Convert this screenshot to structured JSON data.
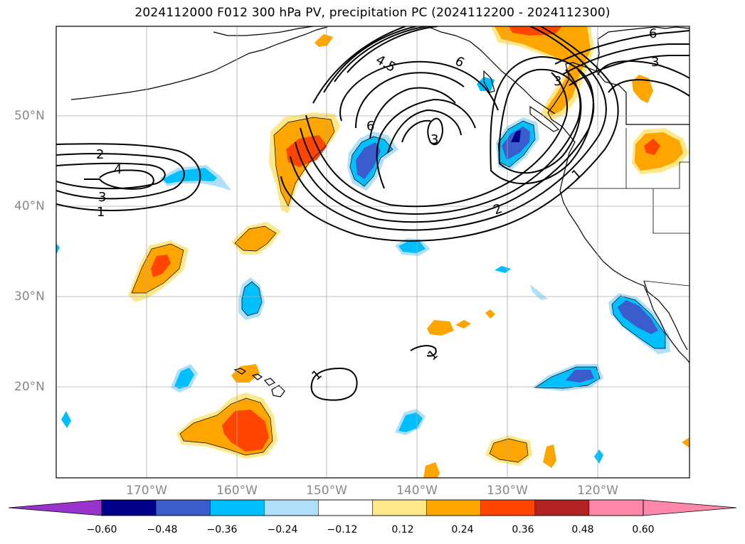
{
  "title": "2024112000 F012 300 hPa PV, precipitation PC (2024112200 - 2024112300)",
  "lat_axis": {
    "ticks": [
      {
        "value": 50,
        "label": "50°N"
      },
      {
        "value": 40,
        "label": "40°N"
      },
      {
        "value": 30,
        "label": "30°N"
      },
      {
        "value": 20,
        "label": "20°N"
      }
    ]
  },
  "lon_axis": {
    "ticks": [
      {
        "value": -170,
        "label": "170°W"
      },
      {
        "value": -160,
        "label": "160°W"
      },
      {
        "value": -150,
        "label": "150°W"
      },
      {
        "value": -140,
        "label": "140°W"
      },
      {
        "value": -130,
        "label": "130°W"
      },
      {
        "value": -120,
        "label": "120°W"
      }
    ]
  },
  "contour_labels": [
    "2",
    "4",
    "3",
    "1",
    "4.5",
    "6",
    "6",
    "3",
    "3",
    "2",
    "1",
    "6",
    "3",
    "1",
    "1"
  ],
  "colorbar": {
    "ticks": [
      "−0.60",
      "−0.48",
      "−0.36",
      "−0.24",
      "−0.12",
      "0.12",
      "0.24",
      "0.36",
      "0.48",
      "0.60"
    ],
    "colors": {
      "under": "#9933cc",
      "bins": [
        "#00008b",
        "#3a5ccc",
        "#00bfff",
        "#aee0fa",
        "#ffffff",
        "#ffe88a",
        "#ffa500",
        "#ff4500",
        "#b22222",
        "#ff88aa"
      ]
    },
    "under_color": "#9933cc",
    "over_color": "#ff88aa"
  },
  "chart_data": {
    "type": "map",
    "fields": [
      "300 hPa PV (contours)",
      "precipitation PC (shaded)"
    ],
    "contour_levels_pvu": [
      1,
      2,
      3,
      4,
      4.5,
      6
    ],
    "shading_levels": [
      -0.6,
      -0.48,
      -0.36,
      -0.24,
      -0.12,
      0.12,
      0.24,
      0.36,
      0.48,
      0.6
    ],
    "lon_range": [
      -180,
      -110
    ],
    "lat_range": [
      10,
      60
    ],
    "grid": true
  }
}
